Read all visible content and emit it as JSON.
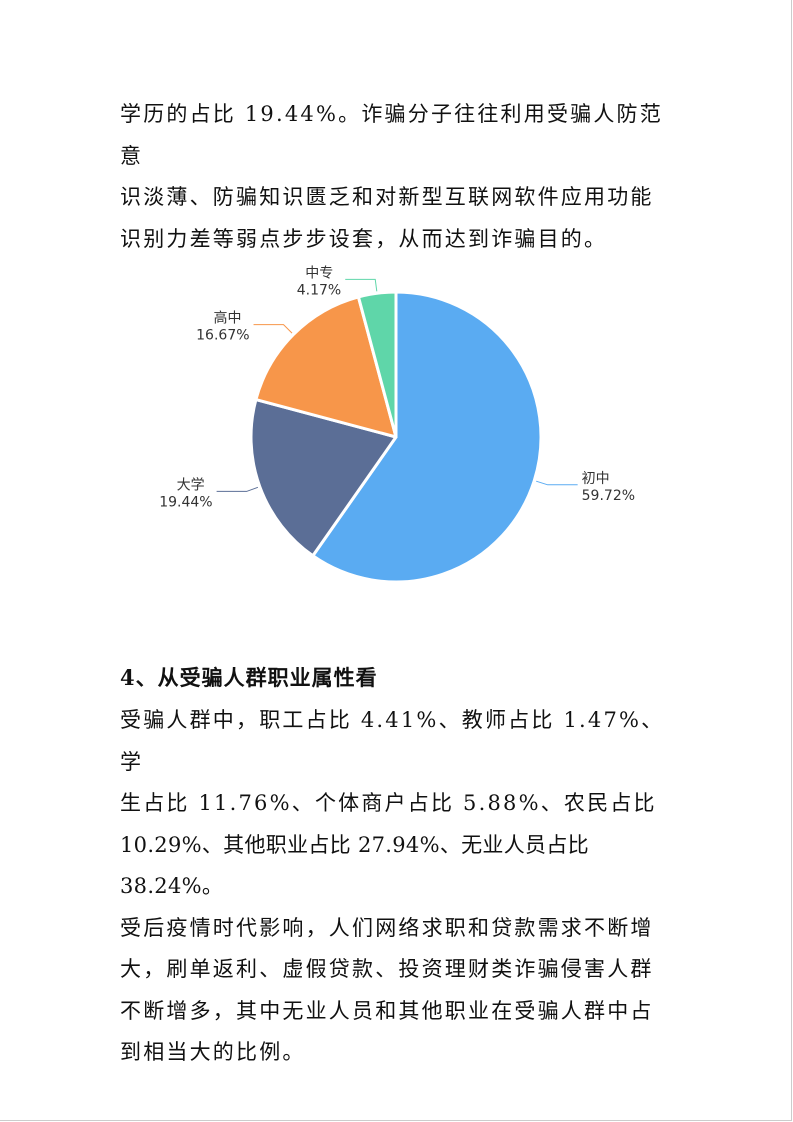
{
  "paragraph_top": [
    "学历的占比 19.44%。诈骗分子往往利用受骗人防范意",
    "识淡薄、防骗知识匮乏和对新型互联网软件应用功能",
    "识别力差等弱点步步设套，从而达到诈骗目的。"
  ],
  "section_heading": "4、从受骗人群职业属性看",
  "paragraph_bottom": [
    " 受骗人群中，职工占比 4.41%、教师占比 1.47%、学",
    "生占比 11.76%、个体商户占比 5.88%、农民占比",
    "10.29%、其他职业占比 27.94%、无业人员占比 38.24%。",
    "受后疫情时代影响，人们网络求职和贷款需求不断增",
    "大，刷单返利、虚假贷款、投资理财类诈骗侵害人群",
    "不断增多，其中无业人员和其他职业在受骗人群中占",
    "到相当大的比例。"
  ],
  "chart_data": {
    "type": "pie",
    "start_angle": "12 o'clock, clockwise",
    "slices": [
      {
        "label": "初中",
        "value": 59.72,
        "value_label": "59.72%",
        "color": "#5aabf2"
      },
      {
        "label": "大学",
        "value": 19.44,
        "value_label": "19.44%",
        "color": "#5b6e96"
      },
      {
        "label": "高中",
        "value": 16.67,
        "value_label": "16.67%",
        "color": "#f7964a"
      },
      {
        "label": "中专",
        "value": 4.17,
        "value_label": "4.17%",
        "color": "#5fd6a9"
      }
    ]
  }
}
